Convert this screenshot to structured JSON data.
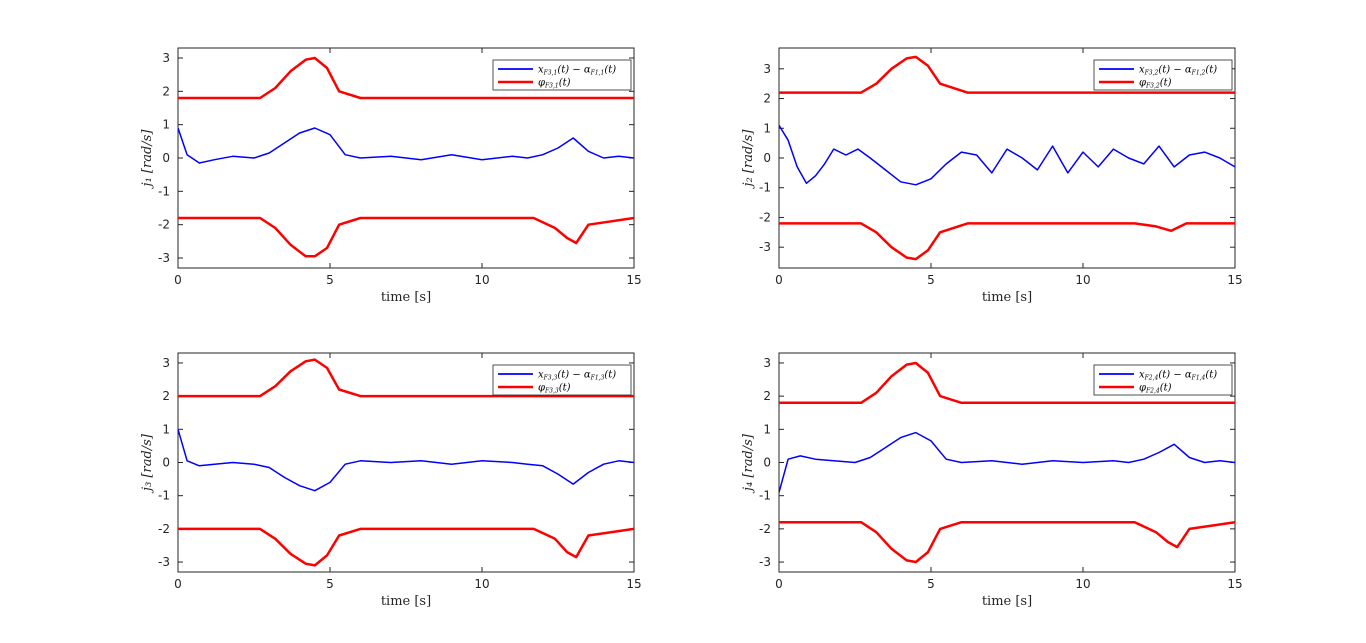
{
  "chart_data": [
    {
      "type": "line",
      "xlabel": "time [s]",
      "ylabel": "j₁ [rad/s]",
      "xlim": [
        0,
        15
      ],
      "ylim": [
        -3.3,
        3.3
      ],
      "xticks": [
        "0",
        "5",
        "10",
        "15"
      ],
      "yticks": [
        "-3",
        "-2",
        "-1",
        "0",
        "1",
        "2",
        "3"
      ],
      "legend_position": "top-right",
      "series": [
        {
          "name": "x_{F3,1}(t) − α_{F1,1}(t)",
          "color": "#0000ff",
          "x": [
            0,
            0.3,
            0.7,
            1.2,
            1.8,
            2.5,
            3.0,
            3.5,
            4.0,
            4.5,
            5.0,
            5.5,
            6.0,
            7.0,
            8.0,
            9.0,
            10.0,
            11.0,
            11.5,
            12.0,
            12.5,
            13.0,
            13.5,
            14.0,
            14.5,
            15
          ],
          "y": [
            0.9,
            0.1,
            -0.15,
            -0.05,
            0.05,
            0.0,
            0.15,
            0.45,
            0.75,
            0.9,
            0.7,
            0.1,
            0.0,
            0.05,
            -0.05,
            0.1,
            -0.05,
            0.05,
            0.0,
            0.1,
            0.3,
            0.6,
            0.2,
            0.0,
            0.05,
            0.0
          ]
        },
        {
          "name": "φ_{F3,1}(t)",
          "color": "#ff0000",
          "x": [
            0,
            2.7,
            3.2,
            3.7,
            4.2,
            4.5,
            4.9,
            5.3,
            6.0,
            15
          ],
          "y": [
            1.8,
            1.8,
            2.1,
            2.6,
            2.95,
            3.0,
            2.7,
            2.0,
            1.8,
            1.8
          ]
        },
        {
          "name": "",
          "color": "#ff0000",
          "x": [
            0,
            2.7,
            3.2,
            3.7,
            4.2,
            4.5,
            4.9,
            5.3,
            6.0,
            11.7,
            12.4,
            12.8,
            13.1,
            13.5,
            15
          ],
          "y": [
            -1.8,
            -1.8,
            -2.1,
            -2.6,
            -2.95,
            -2.95,
            -2.7,
            -2.0,
            -1.8,
            -1.8,
            -2.1,
            -2.4,
            -2.55,
            -2.0,
            -1.8
          ]
        }
      ]
    },
    {
      "type": "line",
      "xlabel": "time [s]",
      "ylabel": "j₂ [rad/s]",
      "xlim": [
        0,
        15
      ],
      "ylim": [
        -3.7,
        3.7
      ],
      "xticks": [
        "0",
        "5",
        "10",
        "15"
      ],
      "yticks": [
        "-3",
        "-2",
        "-1",
        "0",
        "1",
        "2",
        "3"
      ],
      "legend_position": "top-right",
      "series": [
        {
          "name": "x_{F3,2}(t) − α_{F1,2}(t)",
          "color": "#0000ff",
          "x": [
            0,
            0.3,
            0.6,
            0.9,
            1.2,
            1.5,
            1.8,
            2.2,
            2.6,
            3.0,
            3.5,
            4.0,
            4.5,
            5.0,
            5.5,
            6.0,
            6.5,
            7.0,
            7.5,
            8.0,
            8.5,
            9.0,
            9.5,
            10.0,
            10.5,
            11.0,
            11.5,
            12.0,
            12.5,
            13.0,
            13.5,
            14.0,
            14.5,
            15
          ],
          "y": [
            1.1,
            0.6,
            -0.3,
            -0.85,
            -0.6,
            -0.2,
            0.3,
            0.1,
            0.3,
            0.0,
            -0.4,
            -0.8,
            -0.9,
            -0.7,
            -0.2,
            0.2,
            0.1,
            -0.5,
            0.3,
            0.0,
            -0.4,
            0.4,
            -0.5,
            0.2,
            -0.3,
            0.3,
            0.0,
            -0.2,
            0.4,
            -0.3,
            0.1,
            0.2,
            0.0,
            -0.3
          ]
        },
        {
          "name": "φ_{F3,2}(t)",
          "color": "#ff0000",
          "x": [
            0,
            2.7,
            3.2,
            3.7,
            4.2,
            4.5,
            4.9,
            5.3,
            6.2,
            15
          ],
          "y": [
            2.2,
            2.2,
            2.5,
            3.0,
            3.35,
            3.4,
            3.1,
            2.5,
            2.2,
            2.2
          ]
        },
        {
          "name": "",
          "color": "#ff0000",
          "x": [
            0,
            2.7,
            3.2,
            3.7,
            4.2,
            4.5,
            4.9,
            5.3,
            6.2,
            11.7,
            12.4,
            12.9,
            13.4,
            15
          ],
          "y": [
            -2.2,
            -2.2,
            -2.5,
            -3.0,
            -3.35,
            -3.4,
            -3.1,
            -2.5,
            -2.2,
            -2.2,
            -2.3,
            -2.45,
            -2.2,
            -2.2
          ]
        }
      ]
    },
    {
      "type": "line",
      "xlabel": "time [s]",
      "ylabel": "j₃ [rad/s]",
      "xlim": [
        0,
        15
      ],
      "ylim": [
        -3.3,
        3.3
      ],
      "xticks": [
        "0",
        "5",
        "10",
        "15"
      ],
      "yticks": [
        "-3",
        "-2",
        "-1",
        "0",
        "1",
        "2",
        "3"
      ],
      "legend_position": "top-right",
      "series": [
        {
          "name": "x_{F3,3}(t) − α_{F1,3}(t)",
          "color": "#0000ff",
          "x": [
            0,
            0.3,
            0.7,
            1.2,
            1.8,
            2.5,
            3.0,
            3.5,
            4.0,
            4.5,
            5.0,
            5.5,
            6.0,
            7.0,
            8.0,
            9.0,
            10.0,
            11.0,
            11.5,
            12.0,
            12.5,
            13.0,
            13.5,
            14.0,
            14.5,
            15
          ],
          "y": [
            1.0,
            0.05,
            -0.1,
            -0.05,
            0.0,
            -0.05,
            -0.15,
            -0.45,
            -0.7,
            -0.85,
            -0.6,
            -0.05,
            0.05,
            0.0,
            0.05,
            -0.05,
            0.05,
            0.0,
            -0.05,
            -0.1,
            -0.35,
            -0.65,
            -0.3,
            -0.05,
            0.05,
            0.0
          ]
        },
        {
          "name": "φ_{F3,3}(t)",
          "color": "#ff0000",
          "x": [
            0,
            2.7,
            3.2,
            3.7,
            4.2,
            4.5,
            4.9,
            5.3,
            6.0,
            15
          ],
          "y": [
            2.0,
            2.0,
            2.3,
            2.75,
            3.05,
            3.1,
            2.85,
            2.2,
            2.0,
            2.0
          ]
        },
        {
          "name": "",
          "color": "#ff0000",
          "x": [
            0,
            2.7,
            3.2,
            3.7,
            4.2,
            4.5,
            4.9,
            5.3,
            6.0,
            11.7,
            12.4,
            12.8,
            13.1,
            13.5,
            15
          ],
          "y": [
            -2.0,
            -2.0,
            -2.3,
            -2.75,
            -3.05,
            -3.1,
            -2.8,
            -2.2,
            -2.0,
            -2.0,
            -2.3,
            -2.7,
            -2.85,
            -2.2,
            -2.0
          ]
        }
      ]
    },
    {
      "type": "line",
      "xlabel": "time [s]",
      "ylabel": "j₄ [rad/s]",
      "xlim": [
        0,
        15
      ],
      "ylim": [
        -3.3,
        3.3
      ],
      "xticks": [
        "0",
        "5",
        "10",
        "15"
      ],
      "yticks": [
        "-3",
        "-2",
        "-1",
        "0",
        "1",
        "2",
        "3"
      ],
      "legend_position": "top-right",
      "series": [
        {
          "name": "x_{F2,4}(t) − α_{F1,4}(t)",
          "color": "#0000ff",
          "x": [
            0,
            0.3,
            0.7,
            1.2,
            1.8,
            2.5,
            3.0,
            3.5,
            4.0,
            4.5,
            5.0,
            5.5,
            6.0,
            7.0,
            8.0,
            9.0,
            10.0,
            11.0,
            11.5,
            12.0,
            12.5,
            13.0,
            13.5,
            14.0,
            14.5,
            15
          ],
          "y": [
            -0.9,
            0.1,
            0.2,
            0.1,
            0.05,
            0.0,
            0.15,
            0.45,
            0.75,
            0.9,
            0.65,
            0.1,
            0.0,
            0.05,
            -0.05,
            0.05,
            0.0,
            0.05,
            0.0,
            0.1,
            0.3,
            0.55,
            0.15,
            0.0,
            0.05,
            0.0
          ]
        },
        {
          "name": "φ_{F2,4}(t)",
          "color": "#ff0000",
          "x": [
            0,
            2.7,
            3.2,
            3.7,
            4.2,
            4.5,
            4.9,
            5.3,
            6.0,
            15
          ],
          "y": [
            1.8,
            1.8,
            2.1,
            2.6,
            2.95,
            3.0,
            2.7,
            2.0,
            1.8,
            1.8
          ]
        },
        {
          "name": "",
          "color": "#ff0000",
          "x": [
            0,
            2.7,
            3.2,
            3.7,
            4.2,
            4.5,
            4.9,
            5.3,
            6.0,
            11.7,
            12.4,
            12.8,
            13.1,
            13.5,
            15
          ],
          "y": [
            -1.8,
            -1.8,
            -2.1,
            -2.6,
            -2.95,
            -3.0,
            -2.7,
            -2.0,
            -1.8,
            -1.8,
            -2.1,
            -2.4,
            -2.55,
            -2.0,
            -1.8
          ]
        }
      ]
    }
  ]
}
